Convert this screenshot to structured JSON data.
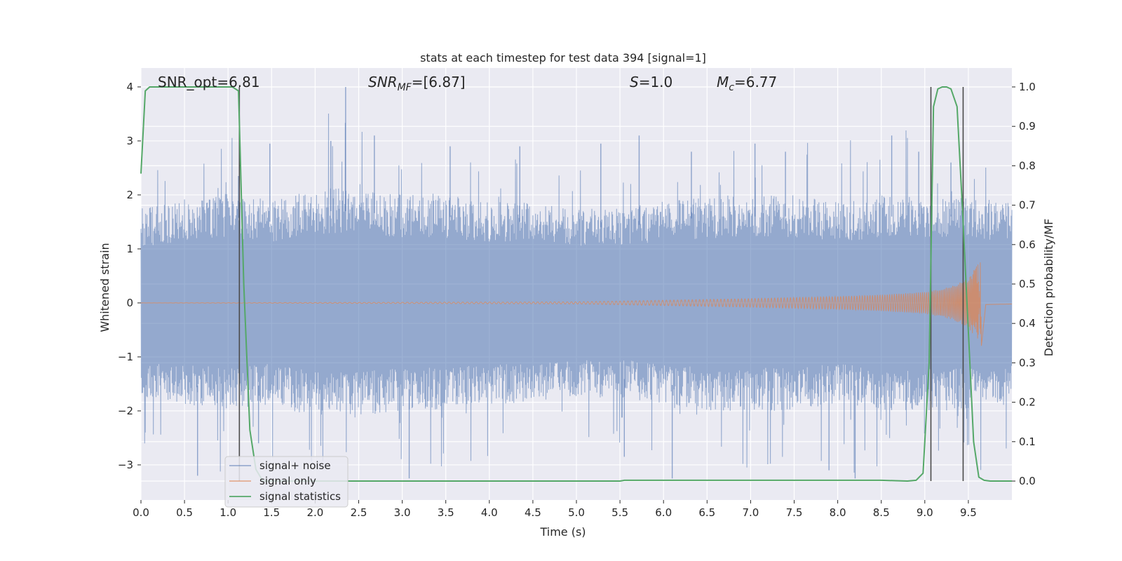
{
  "chart_data": {
    "type": "line",
    "title": "stats at each timestep for test data 394 [signal=1]",
    "xlabel": "Time (s)",
    "ylabel": "Whitened strain",
    "y2label": "Detection probability/MF",
    "xlim": [
      0.0,
      10.0
    ],
    "ylim": [
      -3.65,
      4.35
    ],
    "y2lim": [
      -0.048,
      1.048
    ],
    "xticks": [
      "0.0",
      "0.5",
      "1.0",
      "1.5",
      "2.0",
      "2.5",
      "3.0",
      "3.5",
      "4.0",
      "4.5",
      "5.0",
      "5.5",
      "6.0",
      "6.5",
      "7.0",
      "7.5",
      "8.0",
      "8.5",
      "9.0",
      "9.5"
    ],
    "xtick_values": [
      0.0,
      0.5,
      1.0,
      1.5,
      2.0,
      2.5,
      3.0,
      3.5,
      4.0,
      4.5,
      5.0,
      5.5,
      6.0,
      6.5,
      7.0,
      7.5,
      8.0,
      8.5,
      9.0,
      9.5
    ],
    "yticks": [
      "4",
      "3",
      "2",
      "1",
      "0",
      "−1",
      "−2",
      "−3"
    ],
    "ytick_values": [
      4,
      3,
      2,
      1,
      0,
      -1,
      -2,
      -3
    ],
    "y2ticks": [
      "1.0",
      "0.9",
      "0.8",
      "0.7",
      "0.6",
      "0.5",
      "0.4",
      "0.3",
      "0.2",
      "0.1",
      "0.0"
    ],
    "y2tick_values": [
      1.0,
      0.9,
      0.8,
      0.7,
      0.6,
      0.5,
      0.4,
      0.3,
      0.2,
      0.1,
      0.0
    ],
    "annotations": {
      "snr_opt": "SNR_opt=6.81",
      "snr_mf_name": "SNR",
      "snr_mf_sub": "MF",
      "snr_mf_value": "=[6.87]",
      "s_name": "S",
      "s_value": "=1.0",
      "mc_name": "M",
      "mc_sub": "c",
      "mc_value": "=6.77"
    },
    "legend": {
      "position": "lower-left",
      "entries": [
        "signal+ noise",
        "signal only",
        "signal statistics"
      ]
    },
    "series": [
      {
        "name": "signal+ noise",
        "color": "#4c72b0",
        "envelope_x": [
          0.0,
          0.5,
          1.0,
          1.5,
          2.0,
          2.5,
          3.0,
          3.5,
          4.0,
          4.5,
          5.0,
          5.5,
          6.0,
          6.5,
          7.0,
          7.5,
          8.0,
          8.5,
          9.0,
          9.5,
          10.0
        ],
        "envelope_upper": [
          1.4,
          1.5,
          1.6,
          1.5,
          1.7,
          1.7,
          1.6,
          1.6,
          1.5,
          1.5,
          1.4,
          1.4,
          1.5,
          1.6,
          1.6,
          1.6,
          1.5,
          1.6,
          1.6,
          1.6,
          1.5
        ],
        "envelope_lower": [
          -1.4,
          -1.5,
          -1.6,
          -1.5,
          -1.7,
          -1.7,
          -1.6,
          -1.6,
          -1.5,
          -1.5,
          -1.4,
          -1.4,
          -1.5,
          -1.6,
          -1.6,
          -1.6,
          -1.5,
          -1.6,
          -1.6,
          -1.6,
          -1.5
        ],
        "peaks_x": [
          0.65,
          1.12,
          1.35,
          1.48,
          2.18,
          2.35,
          2.68,
          3.08,
          3.55,
          4.35,
          5.28,
          5.55,
          5.72,
          6.1,
          6.32,
          7.05,
          7.4,
          7.9,
          8.2,
          8.62,
          8.93,
          9.3
        ],
        "peaks_y": [
          -3.2,
          2.35,
          -2.6,
          2.95,
          3.0,
          4.0,
          3.1,
          -3.25,
          2.9,
          2.9,
          2.95,
          -2.85,
          3.1,
          -3.25,
          2.8,
          2.95,
          2.8,
          -3.1,
          -3.25,
          3.1,
          2.8,
          2.6
        ]
      },
      {
        "name": "signal only",
        "color": "#dd8452",
        "envelope_x": [
          0.0,
          5.0,
          6.0,
          7.0,
          8.0,
          8.5,
          9.0,
          9.3,
          9.5,
          9.6,
          9.65,
          9.7,
          10.0
        ],
        "envelope_amp": [
          0.0,
          0.02,
          0.05,
          0.08,
          0.12,
          0.15,
          0.2,
          0.3,
          0.45,
          0.7,
          0.8,
          0.03,
          0.02
        ]
      },
      {
        "name": "signal statistics",
        "color": "#55a868",
        "x": [
          0.0,
          0.05,
          0.1,
          1.05,
          1.12,
          1.18,
          1.25,
          1.32,
          1.4,
          5.5,
          5.55,
          8.5,
          8.8,
          8.9,
          8.98,
          9.05,
          9.1,
          9.15,
          9.2,
          9.25,
          9.3,
          9.37,
          9.43,
          9.5,
          9.56,
          9.62,
          9.68,
          9.75,
          9.8,
          10.0
        ],
        "values": [
          0.78,
          0.99,
          1.0,
          1.0,
          0.99,
          0.5,
          0.13,
          0.03,
          0.0,
          0.0,
          0.002,
          0.002,
          0.0,
          0.002,
          0.02,
          0.3,
          0.95,
          0.995,
          1.0,
          1.0,
          0.995,
          0.95,
          0.7,
          0.38,
          0.1,
          0.01,
          0.002,
          0.0,
          0.0,
          0.0
        ]
      }
    ],
    "vlines": [
      1.13,
      9.07,
      9.44
    ]
  },
  "colors": {
    "plot_background": "#eaeaf2",
    "grid": "#ffffff",
    "vline": "#4a4a4a",
    "noise": "#4c72b0",
    "signal": "#dd8452",
    "statistics": "#55a868"
  }
}
